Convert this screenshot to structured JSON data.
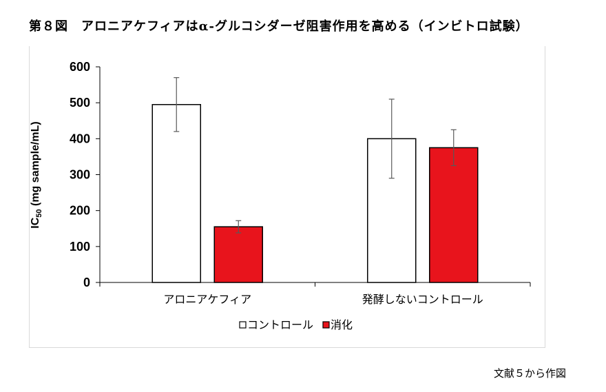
{
  "figure": {
    "title": "第８図　アロニアケフィアはα-グルコシダーゼ阻害作用を高める（インビトロ試験）",
    "source": "文献５から作図"
  },
  "chart_data": {
    "type": "bar",
    "title": "第８図　アロニアケフィアはα-グルコシダーゼ阻害作用を高める（インビトロ試験）",
    "categories": [
      "アロニアケフィア",
      "発酵しないコントロール"
    ],
    "series": [
      {
        "name": "コントロール",
        "values": [
          495,
          400
        ],
        "errors": [
          75,
          110
        ],
        "color": "#ffffff",
        "stroke": "#000000"
      },
      {
        "name": "消化",
        "values": [
          155,
          375
        ],
        "errors": [
          17,
          50
        ],
        "color": "#e8141c",
        "stroke": "#000000"
      }
    ],
    "ylabel_main": "IC",
    "ylabel_sub": "50",
    "ylabel_rest": " (mg sample/mL)",
    "ylim": [
      0,
      600
    ],
    "yticks": [
      0,
      100,
      200,
      300,
      400,
      500,
      600
    ],
    "legend_position": "bottom",
    "grid": false
  }
}
